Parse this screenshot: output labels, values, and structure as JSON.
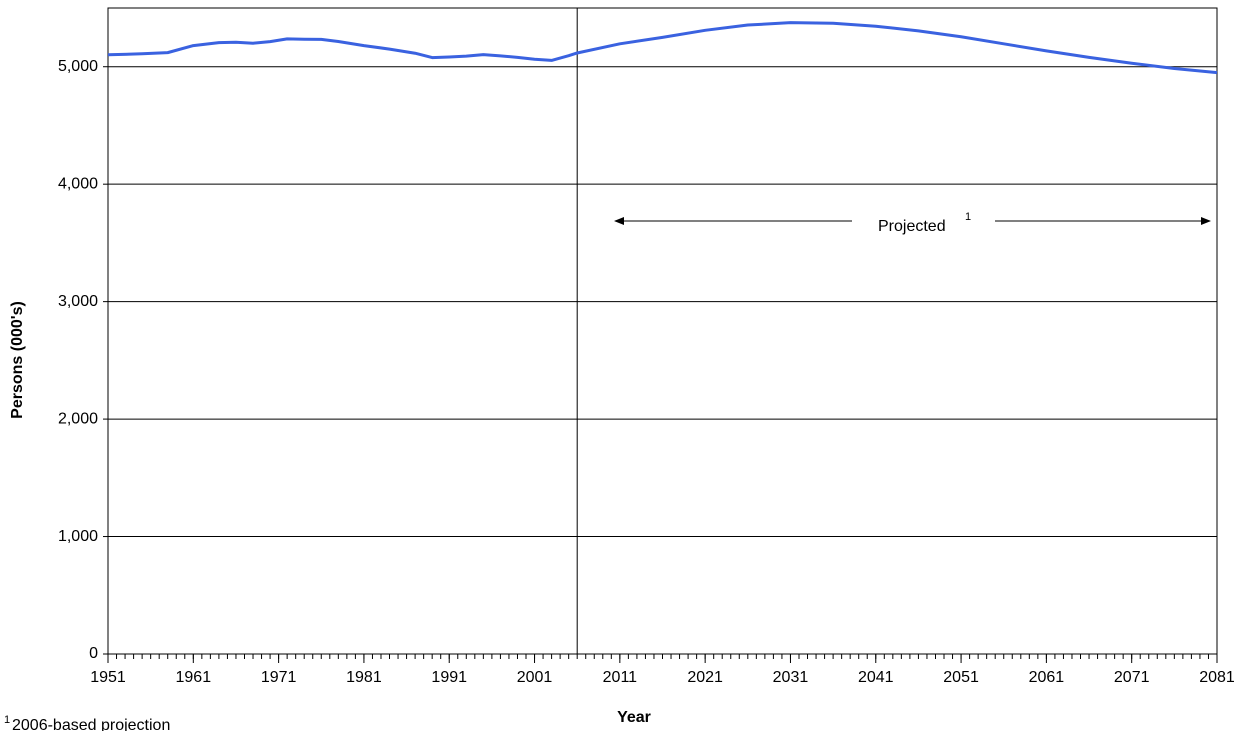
{
  "chart_data": {
    "type": "line",
    "x_label": "Year",
    "y_label": "Persons (000's)",
    "x": [
      1951,
      1955,
      1958,
      1961,
      1964,
      1966,
      1968,
      1970,
      1972,
      1974,
      1976,
      1978,
      1981,
      1984,
      1987,
      1989,
      1991,
      1993,
      1995,
      1997,
      1999,
      2001,
      2003,
      2005,
      2006,
      2011,
      2016,
      2021,
      2026,
      2031,
      2036,
      2041,
      2046,
      2051,
      2056,
      2061,
      2066,
      2071,
      2076,
      2081
    ],
    "series": [
      {
        "color": "#3a62e0",
        "values": [
          5102,
          5110,
          5120,
          5180,
          5205,
          5208,
          5200,
          5214,
          5237,
          5234,
          5233,
          5215,
          5180,
          5150,
          5115,
          5078,
          5083,
          5090,
          5103,
          5092,
          5080,
          5064,
          5054,
          5094,
          5117,
          5195,
          5250,
          5310,
          5355,
          5375,
          5370,
          5345,
          5305,
          5255,
          5195,
          5135,
          5080,
          5030,
          4985,
          4950
        ]
      }
    ],
    "xlim": [
      1951,
      2081
    ],
    "xticks": [
      1951,
      1961,
      1971,
      1981,
      1991,
      2001,
      2011,
      2021,
      2031,
      2041,
      2051,
      2061,
      2071,
      2081
    ],
    "ylim": [
      0,
      5500
    ],
    "yticks": [
      0,
      {
        "value": 1000,
        "label": "1,000"
      },
      {
        "value": 2000,
        "label": "2,000"
      },
      {
        "value": 3000,
        "label": "3,000"
      },
      {
        "value": 4000,
        "label": "4,000"
      },
      {
        "value": 5000,
        "label": "5,000"
      }
    ],
    "grid": true,
    "projection_start": 2006,
    "annotation": {
      "text": "Projected",
      "marker": "1"
    },
    "footnote": {
      "marker": "1",
      "text": "2006-based projection"
    }
  }
}
